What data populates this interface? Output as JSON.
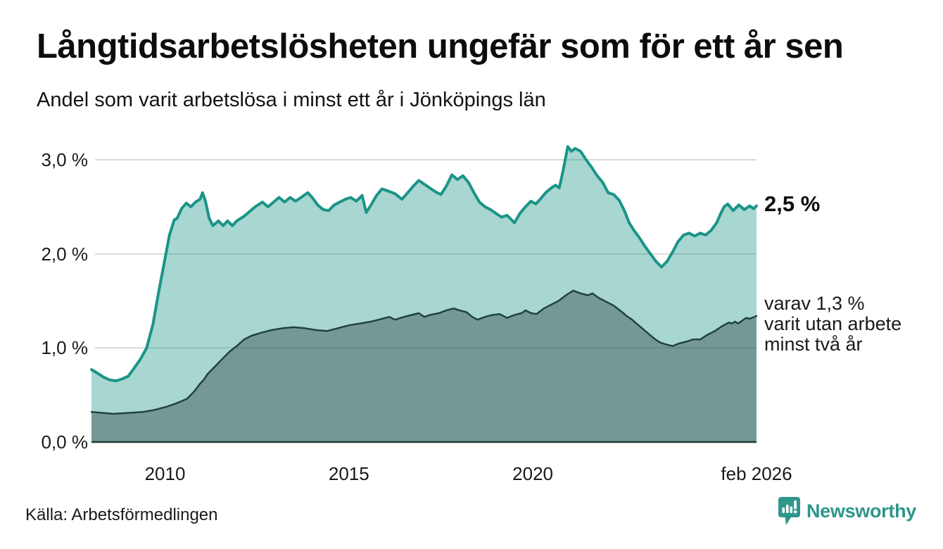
{
  "header": {
    "title": "Långtidsarbetslösheten ungefär som för ett år sen",
    "subtitle": "Andel som varit arbetslösa i minst ett år i Jönköpings län"
  },
  "annotations": {
    "latest_value_label": "2,5 %",
    "series2_note_lines": [
      "varav 1,3 %",
      "varit utan arbete",
      "minst två år"
    ]
  },
  "footer": {
    "source": "Källa: Arbetsförmedlingen",
    "brand": "Newsworthy",
    "brand_icon": "newsworthy-speech-bubble-chart-icon"
  },
  "colors": {
    "series1_line": "#1a9487",
    "series1_fill": "rgba(26,148,135,0.38)",
    "series2_line": "#23423c",
    "series2_fill": "rgba(32,56,51,0.38)",
    "gridline": "#d9d9d9",
    "axis_line": "#203833",
    "text": "#1a1a1a",
    "brand_teal": "#2f968b",
    "background": "#ffffff"
  },
  "chart_data": {
    "type": "area",
    "title": "Långtidsarbetslösheten ungefär som för ett år sen",
    "subtitle": "Andel som varit arbetslösa i minst ett år i Jönköpings län",
    "unit": "%",
    "grid": "horizontal",
    "legend_position": "right-edge annotations",
    "x_domain": [
      2008.0,
      2026.083
    ],
    "y_domain": [
      0,
      3.2
    ],
    "x_ticks": [
      {
        "value": 2010,
        "label": "2010"
      },
      {
        "value": 2015,
        "label": "2015"
      },
      {
        "value": 2020,
        "label": "2020"
      },
      {
        "value": 2026.083,
        "label": "feb 2026"
      }
    ],
    "y_ticks": [
      {
        "value": 0,
        "label": "0,0 %"
      },
      {
        "value": 1,
        "label": "1,0 %"
      },
      {
        "value": 2,
        "label": "2,0 %"
      },
      {
        "value": 3,
        "label": "3,0 %"
      }
    ],
    "series": [
      {
        "name": "Andel arbetslösa minst ett år",
        "latest_value": 2.5,
        "latest_label": "2,5 %",
        "points": [
          [
            2008.0,
            0.77
          ],
          [
            2008.17,
            0.73
          ],
          [
            2008.33,
            0.69
          ],
          [
            2008.5,
            0.66
          ],
          [
            2008.67,
            0.65
          ],
          [
            2008.83,
            0.67
          ],
          [
            2009.0,
            0.7
          ],
          [
            2009.15,
            0.78
          ],
          [
            2009.33,
            0.88
          ],
          [
            2009.5,
            1.0
          ],
          [
            2009.67,
            1.25
          ],
          [
            2009.83,
            1.6
          ],
          [
            2010.0,
            1.95
          ],
          [
            2010.12,
            2.2
          ],
          [
            2010.25,
            2.36
          ],
          [
            2010.33,
            2.38
          ],
          [
            2010.45,
            2.48
          ],
          [
            2010.58,
            2.54
          ],
          [
            2010.7,
            2.5
          ],
          [
            2010.83,
            2.55
          ],
          [
            2010.95,
            2.58
          ],
          [
            2011.02,
            2.65
          ],
          [
            2011.1,
            2.56
          ],
          [
            2011.2,
            2.38
          ],
          [
            2011.3,
            2.3
          ],
          [
            2011.45,
            2.35
          ],
          [
            2011.58,
            2.3
          ],
          [
            2011.7,
            2.35
          ],
          [
            2011.83,
            2.3
          ],
          [
            2011.95,
            2.35
          ],
          [
            2012.15,
            2.4
          ],
          [
            2012.3,
            2.45
          ],
          [
            2012.45,
            2.5
          ],
          [
            2012.65,
            2.55
          ],
          [
            2012.8,
            2.5
          ],
          [
            2012.95,
            2.55
          ],
          [
            2013.1,
            2.6
          ],
          [
            2013.25,
            2.55
          ],
          [
            2013.4,
            2.6
          ],
          [
            2013.55,
            2.56
          ],
          [
            2013.7,
            2.6
          ],
          [
            2013.88,
            2.65
          ],
          [
            2014.0,
            2.6
          ],
          [
            2014.15,
            2.52
          ],
          [
            2014.3,
            2.47
          ],
          [
            2014.45,
            2.46
          ],
          [
            2014.6,
            2.52
          ],
          [
            2014.75,
            2.55
          ],
          [
            2014.9,
            2.58
          ],
          [
            2015.05,
            2.6
          ],
          [
            2015.2,
            2.56
          ],
          [
            2015.36,
            2.62
          ],
          [
            2015.47,
            2.44
          ],
          [
            2015.6,
            2.52
          ],
          [
            2015.75,
            2.62
          ],
          [
            2015.9,
            2.69
          ],
          [
            2016.05,
            2.67
          ],
          [
            2016.25,
            2.64
          ],
          [
            2016.44,
            2.58
          ],
          [
            2016.6,
            2.65
          ],
          [
            2016.75,
            2.72
          ],
          [
            2016.9,
            2.78
          ],
          [
            2017.05,
            2.74
          ],
          [
            2017.2,
            2.7
          ],
          [
            2017.35,
            2.66
          ],
          [
            2017.5,
            2.63
          ],
          [
            2017.65,
            2.72
          ],
          [
            2017.8,
            2.84
          ],
          [
            2017.95,
            2.79
          ],
          [
            2018.1,
            2.83
          ],
          [
            2018.25,
            2.76
          ],
          [
            2018.4,
            2.65
          ],
          [
            2018.55,
            2.55
          ],
          [
            2018.7,
            2.5
          ],
          [
            2018.85,
            2.47
          ],
          [
            2019.0,
            2.43
          ],
          [
            2019.15,
            2.39
          ],
          [
            2019.3,
            2.41
          ],
          [
            2019.5,
            2.33
          ],
          [
            2019.65,
            2.43
          ],
          [
            2019.8,
            2.5
          ],
          [
            2019.95,
            2.56
          ],
          [
            2020.08,
            2.53
          ],
          [
            2020.2,
            2.58
          ],
          [
            2020.35,
            2.65
          ],
          [
            2020.5,
            2.7
          ],
          [
            2020.62,
            2.73
          ],
          [
            2020.72,
            2.7
          ],
          [
            2020.82,
            2.88
          ],
          [
            2020.95,
            3.14
          ],
          [
            2021.05,
            3.09
          ],
          [
            2021.15,
            3.12
          ],
          [
            2021.3,
            3.09
          ],
          [
            2021.45,
            3.0
          ],
          [
            2021.6,
            2.92
          ],
          [
            2021.75,
            2.83
          ],
          [
            2021.9,
            2.76
          ],
          [
            2022.05,
            2.65
          ],
          [
            2022.2,
            2.63
          ],
          [
            2022.35,
            2.57
          ],
          [
            2022.5,
            2.45
          ],
          [
            2022.62,
            2.33
          ],
          [
            2022.75,
            2.25
          ],
          [
            2022.9,
            2.17
          ],
          [
            2023.05,
            2.08
          ],
          [
            2023.2,
            2.0
          ],
          [
            2023.35,
            1.92
          ],
          [
            2023.5,
            1.86
          ],
          [
            2023.65,
            1.92
          ],
          [
            2023.8,
            2.02
          ],
          [
            2023.95,
            2.13
          ],
          [
            2024.1,
            2.2
          ],
          [
            2024.25,
            2.22
          ],
          [
            2024.4,
            2.19
          ],
          [
            2024.55,
            2.22
          ],
          [
            2024.7,
            2.2
          ],
          [
            2024.85,
            2.25
          ],
          [
            2025.0,
            2.33
          ],
          [
            2025.1,
            2.42
          ],
          [
            2025.2,
            2.5
          ],
          [
            2025.3,
            2.53
          ],
          [
            2025.45,
            2.46
          ],
          [
            2025.6,
            2.52
          ],
          [
            2025.75,
            2.47
          ],
          [
            2025.9,
            2.51
          ],
          [
            2026.0,
            2.48
          ],
          [
            2026.083,
            2.51
          ]
        ]
      },
      {
        "name": "varav utan arbete minst två år",
        "latest_value": 1.3,
        "latest_label": "varav 1,3 % varit utan arbete minst två år",
        "points": [
          [
            2008.0,
            0.32
          ],
          [
            2008.3,
            0.31
          ],
          [
            2008.6,
            0.3
          ],
          [
            2009.0,
            0.31
          ],
          [
            2009.4,
            0.32
          ],
          [
            2009.7,
            0.34
          ],
          [
            2010.0,
            0.37
          ],
          [
            2010.3,
            0.41
          ],
          [
            2010.6,
            0.46
          ],
          [
            2010.8,
            0.54
          ],
          [
            2010.95,
            0.62
          ],
          [
            2011.05,
            0.66
          ],
          [
            2011.15,
            0.72
          ],
          [
            2011.35,
            0.8
          ],
          [
            2011.55,
            0.88
          ],
          [
            2011.75,
            0.96
          ],
          [
            2011.95,
            1.02
          ],
          [
            2012.15,
            1.09
          ],
          [
            2012.35,
            1.13
          ],
          [
            2012.6,
            1.16
          ],
          [
            2012.9,
            1.19
          ],
          [
            2013.2,
            1.21
          ],
          [
            2013.5,
            1.22
          ],
          [
            2013.8,
            1.21
          ],
          [
            2014.1,
            1.19
          ],
          [
            2014.4,
            1.18
          ],
          [
            2014.7,
            1.21
          ],
          [
            2015.0,
            1.24
          ],
          [
            2015.3,
            1.26
          ],
          [
            2015.6,
            1.28
          ],
          [
            2015.9,
            1.31
          ],
          [
            2016.1,
            1.33
          ],
          [
            2016.25,
            1.3
          ],
          [
            2016.5,
            1.33
          ],
          [
            2016.7,
            1.35
          ],
          [
            2016.9,
            1.37
          ],
          [
            2017.05,
            1.33
          ],
          [
            2017.2,
            1.35
          ],
          [
            2017.45,
            1.37
          ],
          [
            2017.65,
            1.4
          ],
          [
            2017.85,
            1.42
          ],
          [
            2018.0,
            1.4
          ],
          [
            2018.2,
            1.38
          ],
          [
            2018.35,
            1.33
          ],
          [
            2018.5,
            1.3
          ],
          [
            2018.7,
            1.33
          ],
          [
            2018.9,
            1.35
          ],
          [
            2019.1,
            1.36
          ],
          [
            2019.3,
            1.32
          ],
          [
            2019.5,
            1.35
          ],
          [
            2019.7,
            1.37
          ],
          [
            2019.8,
            1.4
          ],
          [
            2019.95,
            1.37
          ],
          [
            2020.1,
            1.36
          ],
          [
            2020.3,
            1.42
          ],
          [
            2020.5,
            1.46
          ],
          [
            2020.7,
            1.5
          ],
          [
            2020.9,
            1.56
          ],
          [
            2021.1,
            1.61
          ],
          [
            2021.3,
            1.58
          ],
          [
            2021.5,
            1.56
          ],
          [
            2021.62,
            1.58
          ],
          [
            2021.8,
            1.53
          ],
          [
            2022.0,
            1.49
          ],
          [
            2022.2,
            1.45
          ],
          [
            2022.4,
            1.39
          ],
          [
            2022.55,
            1.34
          ],
          [
            2022.7,
            1.3
          ],
          [
            2022.85,
            1.25
          ],
          [
            2023.0,
            1.2
          ],
          [
            2023.15,
            1.15
          ],
          [
            2023.3,
            1.1
          ],
          [
            2023.45,
            1.06
          ],
          [
            2023.6,
            1.04
          ],
          [
            2023.8,
            1.02
          ],
          [
            2024.0,
            1.05
          ],
          [
            2024.2,
            1.07
          ],
          [
            2024.35,
            1.09
          ],
          [
            2024.55,
            1.09
          ],
          [
            2024.75,
            1.14
          ],
          [
            2024.95,
            1.18
          ],
          [
            2025.14,
            1.23
          ],
          [
            2025.33,
            1.27
          ],
          [
            2025.42,
            1.26
          ],
          [
            2025.5,
            1.28
          ],
          [
            2025.58,
            1.26
          ],
          [
            2025.8,
            1.32
          ],
          [
            2025.9,
            1.31
          ],
          [
            2026.083,
            1.34
          ]
        ]
      }
    ]
  }
}
